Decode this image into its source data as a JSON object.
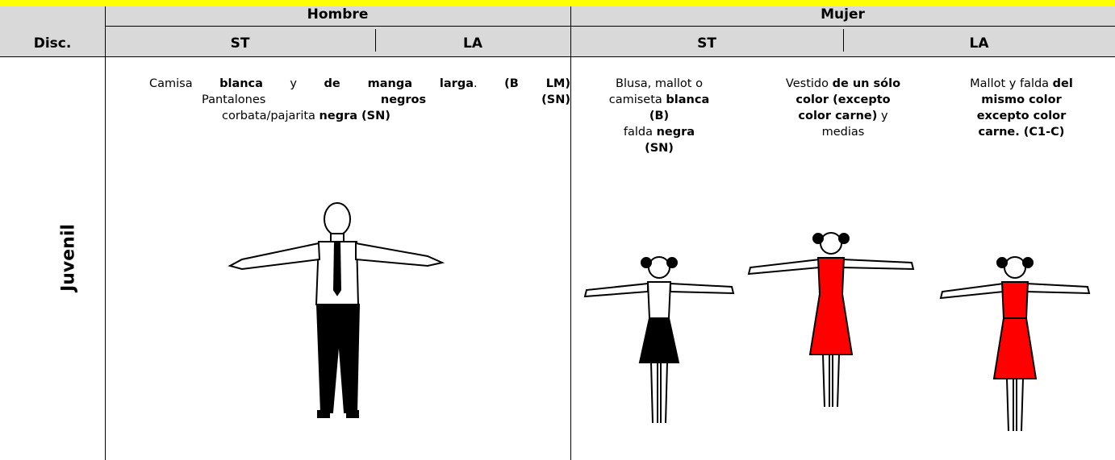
{
  "header": {
    "discipline": "Disc.",
    "groups": [
      {
        "label": "Hombre",
        "subs": [
          "ST",
          "LA"
        ]
      },
      {
        "label": "Mujer",
        "subs": [
          "ST",
          "LA"
        ]
      }
    ]
  },
  "rows": [
    {
      "label": "Juvenil",
      "cells": [
        {
          "lines": [
            [
              {
                "text": "Camisa ",
                "bold": false
              },
              {
                "text": "blanca",
                "bold": true
              },
              {
                "text": " y ",
                "bold": false
              },
              {
                "text": "de manga larga",
                "bold": true
              },
              {
                "text": ". ",
                "bold": false
              },
              {
                "text": "(B LM)",
                "bold": true
              }
            ],
            [
              {
                "text": "Pantalones ",
                "bold": false
              },
              {
                "text": "negros",
                "bold": true
              },
              {
                "text": " (SN)",
                "bold": true
              }
            ],
            [
              {
                "text": "corbata/pajarita ",
                "bold": false
              },
              {
                "text": "negra (SN)",
                "bold": true
              }
            ]
          ]
        },
        {
          "lines": [
            [
              {
                "text": "Blusa, mallot o",
                "bold": false
              }
            ],
            [
              {
                "text": "camiseta ",
                "bold": false
              },
              {
                "text": "blanca",
                "bold": true
              }
            ],
            [
              {
                "text": "(B)",
                "bold": true
              }
            ],
            [
              {
                "text": "falda ",
                "bold": false
              },
              {
                "text": "negra",
                "bold": true
              }
            ],
            [
              {
                "text": "(SN)",
                "bold": true
              }
            ]
          ]
        },
        {
          "lines": [
            [
              {
                "text": "Vestido ",
                "bold": false
              },
              {
                "text": "de un sólo",
                "bold": true
              }
            ],
            [
              {
                "text": "color (excepto",
                "bold": true
              }
            ],
            [
              {
                "text": "color carne)",
                "bold": true
              },
              {
                "text": " y",
                "bold": false
              }
            ],
            [
              {
                "text": "medias",
                "bold": false
              }
            ]
          ]
        },
        {
          "lines": [
            [
              {
                "text": "Mallot y falda ",
                "bold": false
              },
              {
                "text": "del",
                "bold": true
              }
            ],
            [
              {
                "text": "mismo color",
                "bold": true
              }
            ],
            [
              {
                "text": "excepto color",
                "bold": true
              }
            ],
            [
              {
                "text": "carne. (C1-C)",
                "bold": true
              }
            ]
          ]
        }
      ]
    }
  ]
}
